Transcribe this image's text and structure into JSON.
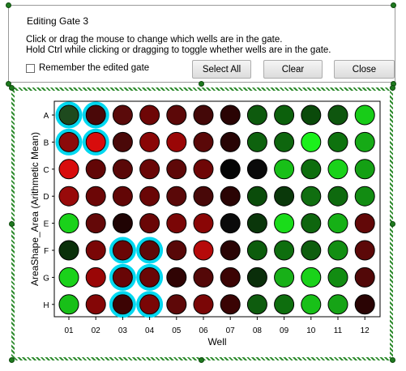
{
  "dialog": {
    "title": "Editing Gate 3",
    "instruction_line1": "Click or drag the mouse to change which wells are in the gate.",
    "instruction_line2": "Hold Ctrl while clicking or dragging to toggle whether wells are in the gate.",
    "remember_label": "Remember the edited gate",
    "remember_checked": false,
    "select_all_label": "Select All",
    "clear_label": "Clear",
    "close_label": "Close"
  },
  "colors": {
    "highlight": "#00d8f0",
    "frame_hatch": "#2e8b2e"
  },
  "chart_data": {
    "type": "heatmap",
    "xlabel": "Well",
    "ylabel": "AreaShape_Area (Arithmetic Mean)",
    "columns": [
      "01",
      "02",
      "03",
      "04",
      "05",
      "06",
      "07",
      "08",
      "09",
      "10",
      "11",
      "12"
    ],
    "rows": [
      "A",
      "B",
      "C",
      "D",
      "E",
      "F",
      "G",
      "H"
    ],
    "well_colors": [
      [
        "#1e4a1e",
        "#4a0808",
        "#5a0a0a",
        "#6e0606",
        "#5c0808",
        "#440808",
        "#2a0404",
        "#0e5a0e",
        "#0c600c",
        "#0a4a0a",
        "#0e560e",
        "#18cc18"
      ],
      [
        "#8c0a0a",
        "#d80c0c",
        "#4a0808",
        "#8a0606",
        "#9a0606",
        "#5a0808",
        "#280404",
        "#0e620e",
        "#0e660e",
        "#1cf01c",
        "#0e720e",
        "#16aa16"
      ],
      [
        "#d80c0c",
        "#620606",
        "#5a0808",
        "#6a0606",
        "#5e0808",
        "#6e0606",
        "#040404",
        "#0a0a0a",
        "#18c018",
        "#0e6e0e",
        "#1ad21a",
        "#14a014"
      ],
      [
        "#980a0a",
        "#6c0606",
        "#620606",
        "#6a0606",
        "#5a0808",
        "#480808",
        "#2a0404",
        "#0a4c0a",
        "#0a380a",
        "#106e10",
        "#0e6a0e",
        "#128c12"
      ],
      [
        "#1ad21a",
        "#640808",
        "#200404",
        "#6a0606",
        "#7a0606",
        "#8a0606",
        "#0a0a0a",
        "#0a360a",
        "#1adc1a",
        "#0e660e",
        "#16b016",
        "#620808"
      ],
      [
        "#0a300a",
        "#7a0606",
        "#6a0606",
        "#5e0808",
        "#580808",
        "#b60a0a",
        "#2a0404",
        "#0c5c0c",
        "#0e6e0e",
        "#0e5e0e",
        "#128e12",
        "#5c0808"
      ],
      [
        "#1ad21a",
        "#9a0606",
        "#680606",
        "#6a0606",
        "#300404",
        "#540808",
        "#3c0404",
        "#0a2e0a",
        "#18b018",
        "#1ad21a",
        "#128c12",
        "#520808"
      ],
      [
        "#18c018",
        "#840606",
        "#3c0404",
        "#7a0606",
        "#5e0808",
        "#7a0606",
        "#3a0404",
        "#0e5c0e",
        "#0e6e0e",
        "#18c018",
        "#16a416",
        "#2a0404"
      ]
    ],
    "gated_wells": [
      "A01",
      "A02",
      "B01",
      "B02",
      "F03",
      "F04",
      "G03",
      "G04",
      "H03",
      "H04"
    ],
    "grid": false
  }
}
